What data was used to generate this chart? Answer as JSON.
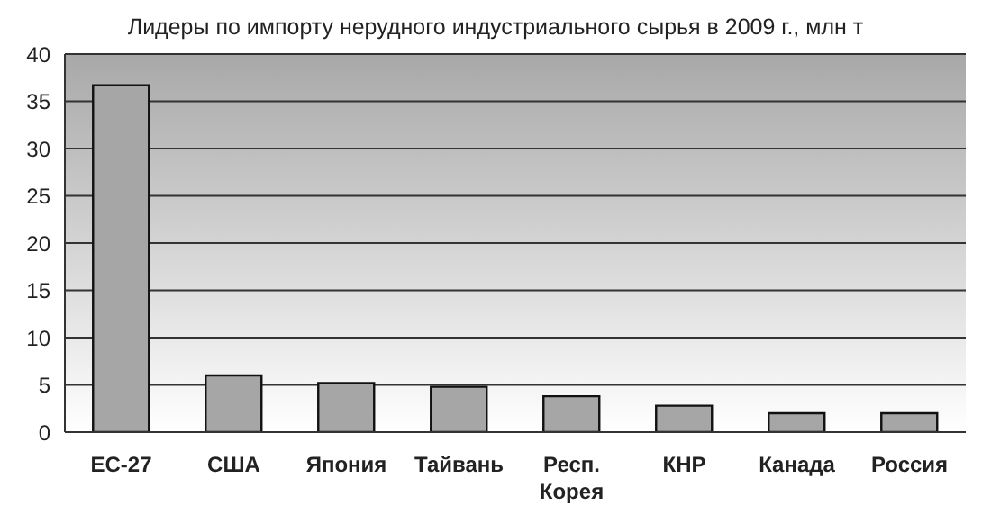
{
  "chart_data": {
    "type": "bar",
    "title": "Лидеры по импорту нерудного индустриального сырья в 2009 г., млн т",
    "categories": [
      "ЕС-27",
      "США",
      "Япония",
      "Тайвань",
      "Респ. Корея",
      "КНР",
      "Канада",
      "Россия"
    ],
    "values": [
      36.7,
      6.0,
      5.2,
      4.8,
      3.8,
      2.8,
      2.0,
      2.0
    ],
    "color": "#a6a6a6",
    "ylim": [
      0,
      40
    ],
    "yticks": [
      0,
      5,
      10,
      15,
      20,
      25,
      30,
      35,
      40
    ],
    "grid": "y"
  }
}
